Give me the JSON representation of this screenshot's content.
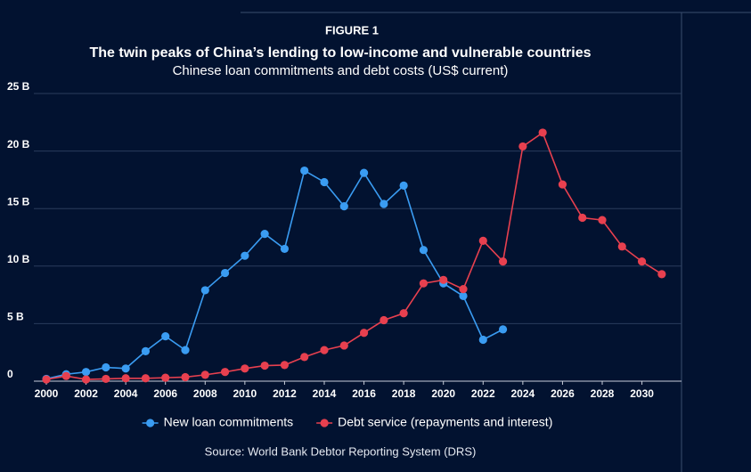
{
  "chart_data": {
    "type": "line",
    "figure_label": "FIGURE 1",
    "title": "The twin peaks of China’s lending to low-income and vulnerable countries",
    "subtitle": "Chinese loan commitments and debt costs (US$ current)",
    "source": "Source: World Bank Debtor Reporting System (DRS)",
    "x": [
      2000,
      2001,
      2002,
      2003,
      2004,
      2005,
      2006,
      2007,
      2008,
      2009,
      2010,
      2011,
      2012,
      2013,
      2014,
      2015,
      2016,
      2017,
      2018,
      2019,
      2020,
      2021,
      2022,
      2023,
      2024,
      2025,
      2026,
      2027,
      2028,
      2029,
      2030,
      2031
    ],
    "xlim": [
      2000,
      2031.5
    ],
    "xticks": [
      2000,
      2002,
      2004,
      2006,
      2008,
      2010,
      2012,
      2014,
      2016,
      2018,
      2020,
      2022,
      2024,
      2026,
      2028,
      2030
    ],
    "ylim": [
      0,
      25
    ],
    "yticks": [
      0,
      {
        "value": 5,
        "label": "5 B"
      },
      {
        "value": 10,
        "label": "10 B"
      },
      {
        "value": 15,
        "label": "15 B"
      },
      {
        "value": 20,
        "label": "20 B"
      },
      {
        "value": 25,
        "label": "25 B"
      }
    ],
    "grid": true,
    "legend": "bottom",
    "series": [
      {
        "name": "New loan commitments",
        "color": "#3a9cf2",
        "values": [
          0.2,
          0.6,
          0.8,
          1.2,
          1.1,
          2.6,
          3.9,
          2.7,
          7.9,
          9.4,
          10.9,
          12.8,
          11.5,
          18.3,
          17.3,
          15.2,
          18.1,
          15.4,
          17.0,
          11.4,
          8.5,
          7.4,
          3.6,
          4.5,
          null,
          null,
          null,
          null,
          null,
          null,
          null,
          null
        ]
      },
      {
        "name": "Debt service (repayments and interest)",
        "color": "#e8404f",
        "values": [
          0.15,
          0.45,
          0.15,
          0.2,
          0.25,
          0.25,
          0.3,
          0.35,
          0.55,
          0.8,
          1.1,
          1.35,
          1.4,
          2.1,
          2.7,
          3.1,
          4.2,
          5.3,
          5.9,
          8.5,
          8.8,
          8.0,
          12.2,
          10.4,
          20.4,
          21.6,
          17.1,
          14.2,
          14.0,
          11.7,
          10.4,
          9.3
        ]
      }
    ]
  }
}
